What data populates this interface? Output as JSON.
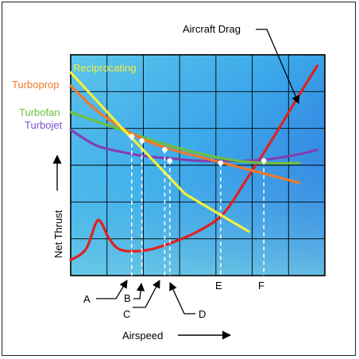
{
  "chart_data": {
    "type": "line",
    "title": "",
    "xlabel": "Airspeed",
    "ylabel": "Net Thrust",
    "xlim": [
      0,
      100
    ],
    "ylim": [
      0,
      100
    ],
    "grid": true,
    "series": [
      {
        "name": "Aircraft Drag",
        "color": "#e02020",
        "label_color": "#000000",
        "x": [
          0,
          6,
          10,
          12,
          15,
          19,
          25,
          32,
          40,
          50,
          60,
          70,
          80,
          90,
          97
        ],
        "y": [
          7,
          12,
          24,
          24,
          17,
          12,
          11,
          12,
          15,
          20,
          28,
          45,
          63,
          82,
          95
        ]
      },
      {
        "name": "Reciprocating",
        "color": "#f2f03a",
        "label_color": "#f2f03a",
        "x": [
          0,
          20,
          26,
          45,
          70
        ],
        "y": [
          92,
          67,
          60,
          37,
          20
        ]
      },
      {
        "name": "Turboprop",
        "color": "#f07a2a",
        "label_color": "#f07a2a",
        "x": [
          0,
          10,
          20,
          30,
          40,
          50,
          60,
          70,
          80,
          90
        ],
        "y": [
          86,
          75,
          67,
          61,
          57,
          54,
          51,
          48,
          45,
          42
        ]
      },
      {
        "name": "Turbofan",
        "color": "#6cc040",
        "label_color": "#6cc040",
        "x": [
          0,
          15,
          30,
          45,
          60,
          75,
          90
        ],
        "y": [
          74,
          68,
          62,
          57,
          53,
          51,
          51
        ]
      },
      {
        "name": "Turbojet",
        "color": "#8040b0",
        "label_color": "#7a4fd0",
        "x": [
          0,
          10,
          20,
          30,
          40,
          50,
          60,
          70,
          80,
          90,
          97
        ],
        "y": [
          66,
          59,
          56,
          54,
          53,
          52,
          52,
          52,
          53,
          55,
          57
        ]
      }
    ],
    "markers": [
      {
        "label": "A",
        "x": 24,
        "y": 63
      },
      {
        "label": "B",
        "x": 28,
        "y": 61
      },
      {
        "label": "C",
        "x": 37,
        "y": 57
      },
      {
        "label": "D",
        "x": 39,
        "y": 52
      },
      {
        "label": "E",
        "x": 59,
        "y": 51
      },
      {
        "label": "F",
        "x": 76,
        "y": 52
      }
    ]
  }
}
